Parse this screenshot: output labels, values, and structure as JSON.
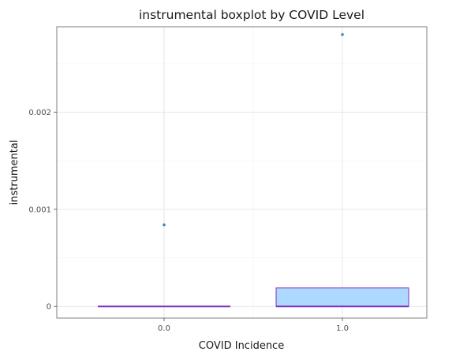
{
  "chart_data": {
    "type": "boxplot",
    "title": "instrumental boxplot by COVID Level",
    "xlabel": "COVID Incidence",
    "ylabel": "instrumental",
    "categories": [
      "0.0",
      "1.0"
    ],
    "ylim": [
      -0.00012,
      0.00288
    ],
    "yticks": [
      0,
      0.001,
      0.002
    ],
    "ytick_labels": [
      "0",
      "0.001",
      "0.002"
    ],
    "grid": true,
    "boxes": [
      {
        "category": "0.0",
        "min": 0,
        "q1": 0,
        "median": 0,
        "q3": 0,
        "max": 0,
        "outliers": [
          0.00084
        ]
      },
      {
        "category": "1.0",
        "min": 0,
        "q1": 0,
        "median": 0,
        "q3": 0.00019,
        "max": 0.00019,
        "outliers": [
          0.0028
        ]
      }
    ],
    "colors": {
      "box_fill": "#add8ff",
      "box_stroke": "#7b2fbe",
      "outlier": "#4682b4",
      "grid": "#e6e6e6",
      "border": "#7f7f7f",
      "text": "#1a1a1a",
      "tick_text": "#4d4d4d"
    }
  }
}
